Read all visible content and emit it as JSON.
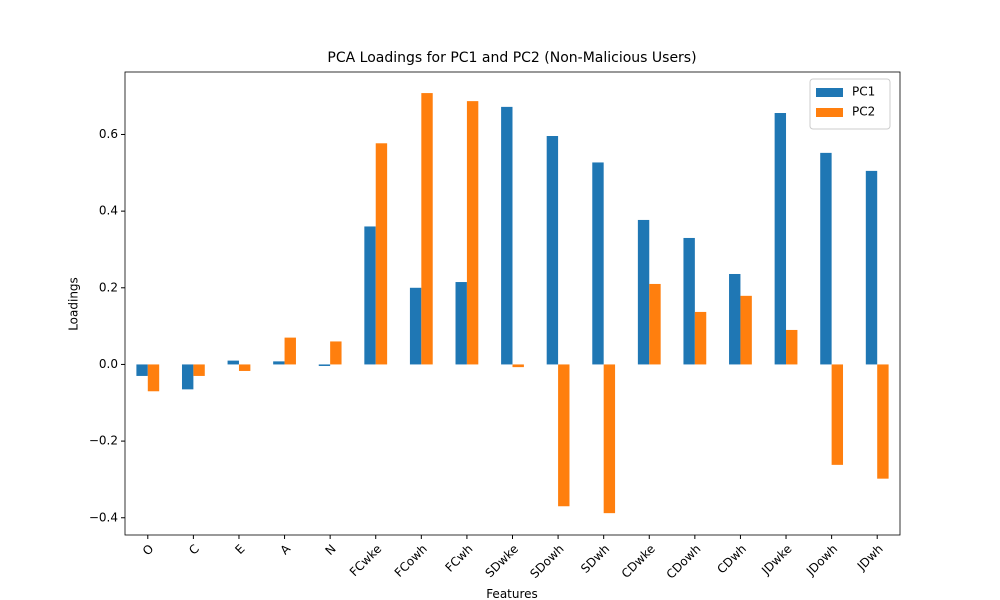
{
  "chart_data": {
    "type": "bar",
    "title": "PCA Loadings for PC1 and PC2 (Non-Malicious Users)",
    "x_label": "Features",
    "y_label": "Loadings",
    "categories": [
      "O",
      "C",
      "E",
      "A",
      "N",
      "FCwke",
      "FCowh",
      "FCwh",
      "SDwke",
      "SDowh",
      "SDwh",
      "CDwke",
      "CDowh",
      "CDwh",
      "JDwke",
      "JDowh",
      "JDwh"
    ],
    "series": [
      {
        "name": "PC1",
        "color": "#1f77b4",
        "values": [
          -0.03,
          -0.065,
          0.01,
          0.008,
          -0.004,
          0.36,
          0.2,
          0.215,
          0.672,
          0.596,
          0.527,
          0.377,
          0.33,
          0.236,
          0.656,
          0.552,
          0.505
        ]
      },
      {
        "name": "PC2",
        "color": "#ff7f0e",
        "values": [
          -0.07,
          -0.03,
          -0.017,
          0.07,
          0.06,
          0.577,
          0.708,
          0.687,
          -0.007,
          -0.37,
          -0.388,
          0.21,
          0.137,
          0.179,
          0.09,
          -0.262,
          -0.298
        ]
      }
    ],
    "ylim": [
      -0.445,
      0.763
    ],
    "yticks": [
      {
        "value": -0.4,
        "label": "−0.4"
      },
      {
        "value": -0.2,
        "label": "−0.2"
      },
      {
        "value": 0,
        "label": "0.0"
      },
      0.2,
      0.4,
      0.6
    ],
    "legend": "upper right",
    "grid": false
  }
}
